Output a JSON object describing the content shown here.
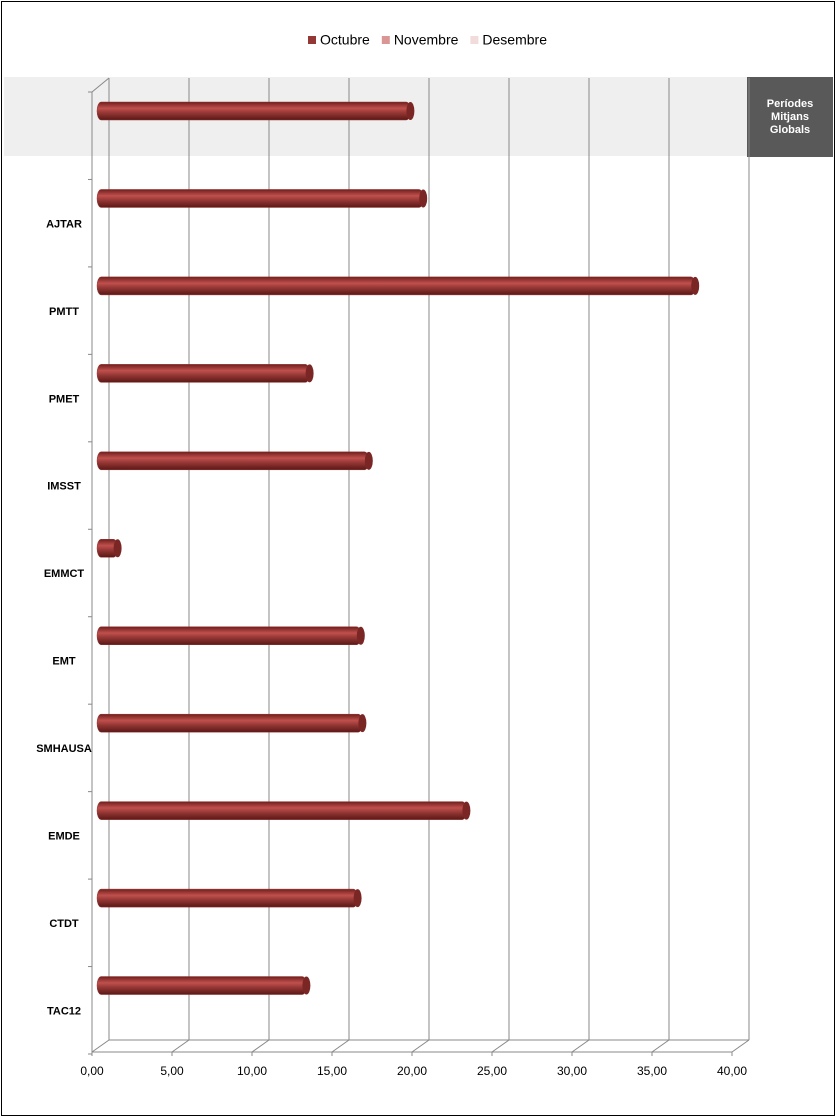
{
  "chart_data": {
    "type": "bar",
    "orientation": "horizontal",
    "annotation": "Períodes Mitjans Globals",
    "categories": [
      null,
      "AJTAR",
      "PMTT",
      "PMET",
      "IMSST",
      "EMMCT",
      "EMT",
      "SMHAUSA",
      "EMDE",
      "CTDT",
      "TAC12"
    ],
    "series": [
      {
        "name": "Octubre",
        "color": "#953735",
        "values": [
          19.4,
          20.2,
          37.2,
          13.1,
          16.8,
          1.1,
          16.3,
          16.4,
          22.9,
          16.1,
          12.9
        ]
      },
      {
        "name": "Novembre",
        "color": "#d99694",
        "values": [
          null,
          null,
          null,
          null,
          null,
          null,
          null,
          null,
          null,
          null,
          null
        ]
      },
      {
        "name": "Desembre",
        "color": "#f2dcdb",
        "values": [
          null,
          null,
          null,
          null,
          null,
          null,
          null,
          null,
          null,
          null,
          null
        ]
      }
    ],
    "xlim": [
      0,
      40
    ],
    "xticks": [
      {
        "value": 0,
        "label": "0,00"
      },
      {
        "value": 5,
        "label": "5,00"
      },
      {
        "value": 10,
        "label": "10,00"
      },
      {
        "value": 15,
        "label": "15,00"
      },
      {
        "value": 20,
        "label": "20,00"
      },
      {
        "value": 25,
        "label": "25,00"
      },
      {
        "value": 30,
        "label": "30,00"
      },
      {
        "value": 35,
        "label": "35,00"
      },
      {
        "value": 40,
        "label": "40,00"
      }
    ],
    "grid": true,
    "legend": "top"
  }
}
